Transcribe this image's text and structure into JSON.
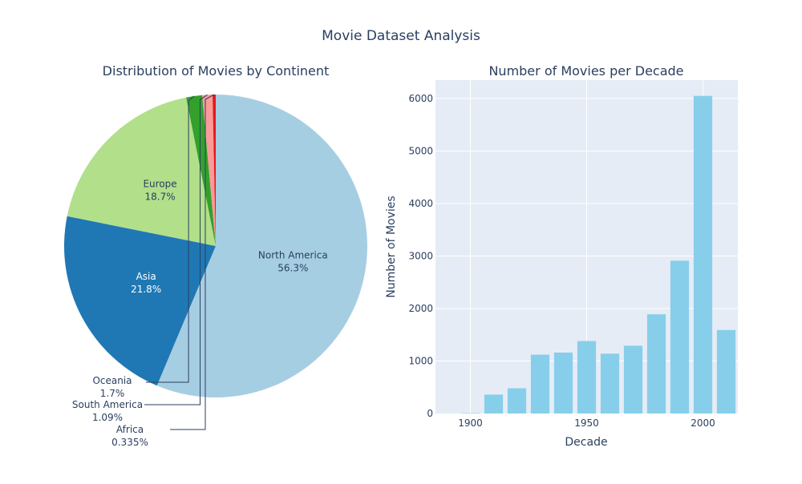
{
  "title": "Movie Dataset Analysis",
  "chart_data": [
    {
      "type": "pie",
      "title": "Distribution of Movies by Continent",
      "slices": [
        {
          "label": "North America",
          "percent": 56.3,
          "percent_text": "56.3%",
          "color": "#a6cee3"
        },
        {
          "label": "Asia",
          "percent": 21.8,
          "percent_text": "21.8%",
          "color": "#1f78b4"
        },
        {
          "label": "Europe",
          "percent": 18.7,
          "percent_text": "18.7%",
          "color": "#b2df8a"
        },
        {
          "label": "Oceania",
          "percent": 1.7,
          "percent_text": "1.7%",
          "color": "#33a02c"
        },
        {
          "label": "South America",
          "percent": 1.09,
          "percent_text": "1.09%",
          "color": "#fb9a99"
        },
        {
          "label": "Africa",
          "percent": 0.335,
          "percent_text": "0.335%",
          "color": "#e31a1c"
        }
      ]
    },
    {
      "type": "bar",
      "title": "Number of Movies per Decade",
      "xlabel": "Decade",
      "ylabel": "Number of Movies",
      "x": [
        1900,
        1910,
        1920,
        1930,
        1940,
        1950,
        1960,
        1970,
        1980,
        1990,
        2000,
        2010
      ],
      "values": [
        5,
        360,
        480,
        1120,
        1160,
        1380,
        1140,
        1290,
        1890,
        2910,
        6050,
        1590
      ],
      "xlim": [
        1885,
        2015
      ],
      "ylim": [
        0,
        6350
      ],
      "xticks": [
        1900,
        1950,
        2000
      ],
      "yticks": [
        0,
        1000,
        2000,
        3000,
        4000,
        5000,
        6000
      ],
      "bar_color": "#87ceeb",
      "plot_bg": "#e5ecf6",
      "grid": true
    }
  ]
}
